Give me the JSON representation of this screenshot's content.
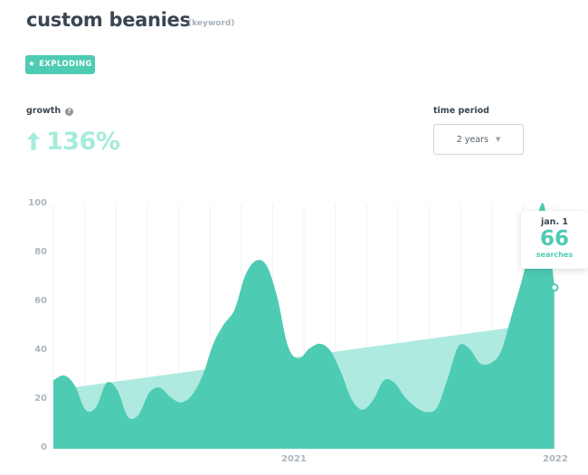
{
  "header": {
    "title": "custom beanies",
    "type_label": "(keyword)"
  },
  "badge": {
    "label": "EXPLODING",
    "icon": "star-icon"
  },
  "growth": {
    "label": "growth",
    "value": "136%",
    "icon": "arrow-up-icon",
    "help_icon": "question-icon"
  },
  "time_period": {
    "label": "time period",
    "selected": "2 years",
    "icon": "caret-down-icon"
  },
  "tooltip": {
    "date": "jan. 1",
    "value": "66",
    "unit": "searches"
  },
  "colors": {
    "accent": "#4ecbb3",
    "trend": "#aeeadf",
    "grid": "#f0f2f4",
    "text": "#3b4652",
    "muted": "#adb6be"
  },
  "chart_data": {
    "type": "area",
    "x_tick_labels": [
      "2021",
      "2022"
    ],
    "ylim": [
      0,
      100
    ],
    "y_ticks": [
      0,
      20,
      40,
      60,
      80,
      100
    ],
    "grid": true,
    "series": [
      {
        "values": [
          28,
          30,
          26,
          16,
          17,
          27,
          24,
          13,
          14,
          23,
          25,
          21,
          19,
          22,
          30,
          43,
          51,
          57,
          71,
          77,
          75,
          62,
          42,
          37,
          41,
          43,
          40,
          31,
          20,
          16,
          20,
          28,
          27,
          21,
          17,
          15,
          17,
          29,
          42,
          41,
          35,
          35,
          40,
          55,
          70,
          87,
          100,
          66
        ]
      },
      {
        "trend": {
          "start": 24,
          "end": 52
        }
      }
    ]
  }
}
